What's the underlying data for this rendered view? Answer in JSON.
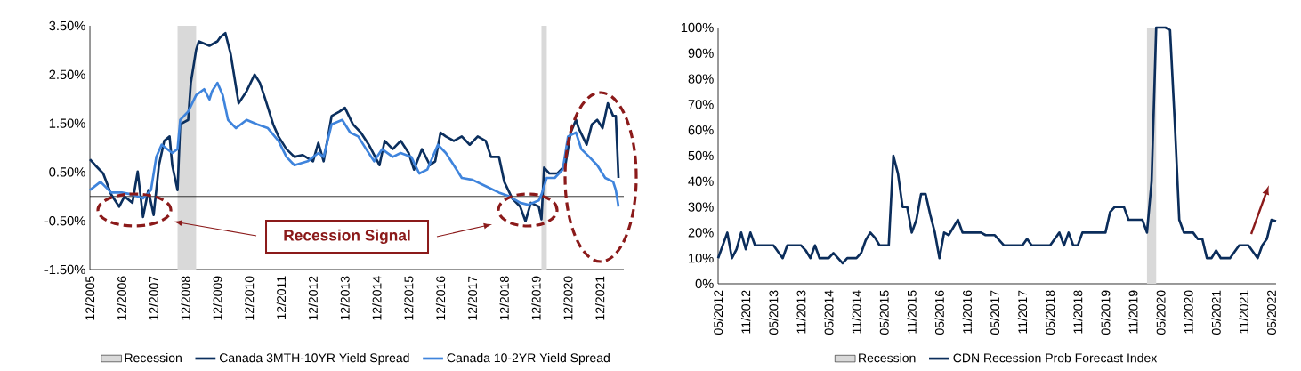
{
  "chart_data": [
    {
      "type": "line",
      "legend": "bottom",
      "xlim": [
        "2005-12",
        "2022-09"
      ],
      "ylim": [
        -1.5,
        3.5
      ],
      "xticks": [
        {
          "value": "2005-12",
          "label": "12/2005"
        },
        {
          "value": "2006-12",
          "label": "12/2006"
        },
        {
          "value": "2007-12",
          "label": "12/2007"
        },
        {
          "value": "2008-12",
          "label": "12/2008"
        },
        {
          "value": "2009-12",
          "label": "12/2009"
        },
        {
          "value": "2010-12",
          "label": "12/2010"
        },
        {
          "value": "2011-12",
          "label": "12/2011"
        },
        {
          "value": "2012-12",
          "label": "12/2012"
        },
        {
          "value": "2013-12",
          "label": "12/2013"
        },
        {
          "value": "2014-12",
          "label": "12/2014"
        },
        {
          "value": "2015-12",
          "label": "12/2015"
        },
        {
          "value": "2016-12",
          "label": "12/2016"
        },
        {
          "value": "2017-12",
          "label": "12/2017"
        },
        {
          "value": "2018-12",
          "label": "12/2018"
        },
        {
          "value": "2019-12",
          "label": "12/2019"
        },
        {
          "value": "2020-12",
          "label": "12/2020"
        },
        {
          "value": "2021-12",
          "label": "12/2021"
        }
      ],
      "yticks": [
        {
          "value": -1.5,
          "label": "-1.50%"
        },
        {
          "value": -0.5,
          "label": "-0.50%"
        },
        {
          "value": 0.5,
          "label": "0.50%"
        },
        {
          "value": 1.5,
          "label": "1.50%"
        },
        {
          "value": 2.5,
          "label": "2.50%"
        },
        {
          "value": 3.5,
          "label": "3.50%"
        }
      ],
      "bands": [
        {
          "axis": "x",
          "from": "2008-09",
          "to": "2009-04",
          "label": "Recession",
          "color": "#d9d9d9"
        },
        {
          "axis": "x",
          "from": "2020-02",
          "to": "2020-04",
          "color": "#d9d9d9"
        }
      ],
      "ref_lines": [
        {
          "axis": "y",
          "value": 0,
          "color": "#000000"
        }
      ],
      "annotations": [
        "Recession Signal"
      ],
      "series": [
        {
          "name": "Canada 3MTH-10YR Yield Spread",
          "color": "#0b2f5e",
          "x": [
            "2005-12",
            "2006-02",
            "2006-05",
            "2006-08",
            "2006-11",
            "2007-01",
            "2007-04",
            "2007-06",
            "2007-08",
            "2007-10",
            "2007-12",
            "2008-02",
            "2008-04",
            "2008-06",
            "2008-07",
            "2008-09",
            "2008-10",
            "2009-01",
            "2009-02",
            "2009-04",
            "2009-05",
            "2009-09",
            "2009-12",
            "2010-01",
            "2010-03",
            "2010-05",
            "2010-08",
            "2010-11",
            "2011-02",
            "2011-04",
            "2011-06",
            "2011-09",
            "2011-11",
            "2012-02",
            "2012-05",
            "2012-08",
            "2012-12",
            "2013-02",
            "2013-04",
            "2013-07",
            "2013-10",
            "2013-12",
            "2014-03",
            "2014-06",
            "2014-09",
            "2015-01",
            "2015-03",
            "2015-06",
            "2015-09",
            "2015-12",
            "2016-02",
            "2016-05",
            "2016-08",
            "2016-10",
            "2016-12",
            "2017-02",
            "2017-05",
            "2017-08",
            "2017-11",
            "2018-02",
            "2018-05",
            "2018-07",
            "2018-10",
            "2018-12",
            "2019-03",
            "2019-06",
            "2019-08",
            "2019-10",
            "2020-01",
            "2020-02",
            "2020-03",
            "2020-05",
            "2020-08",
            "2020-11",
            "2021-01",
            "2021-03",
            "2021-04",
            "2021-07",
            "2021-09",
            "2021-11",
            "2022-01",
            "2022-03",
            "2022-05",
            "2022-06",
            "2022-07"
          ],
          "values": [
            0.76,
            0.64,
            0.47,
            0.04,
            -0.21,
            0,
            -0.13,
            0.51,
            -0.42,
            0.13,
            -0.38,
            0.64,
            1.14,
            1.23,
            0.64,
            0.13,
            1.48,
            1.57,
            2.33,
            3.01,
            3.18,
            3.09,
            3.18,
            3.26,
            3.35,
            2.92,
            1.91,
            2.16,
            2.5,
            2.33,
            2.0,
            1.48,
            1.23,
            0.97,
            0.81,
            0.85,
            0.72,
            1.1,
            0.72,
            1.65,
            1.74,
            1.82,
            1.48,
            1.31,
            1.06,
            0.64,
            1.14,
            0.97,
            1.14,
            0.89,
            0.55,
            0.97,
            0.64,
            0.72,
            1.31,
            1.23,
            1.14,
            1.23,
            1.06,
            1.23,
            1.14,
            0.81,
            0.81,
            0.3,
            -0.04,
            -0.21,
            -0.51,
            -0.13,
            -0.21,
            -0.47,
            0.59,
            0.47,
            0.47,
            0.64,
            1.31,
            1.57,
            1.4,
            1.06,
            1.48,
            1.57,
            1.4,
            1.91,
            1.65,
            1.65,
            0.38
          ]
        },
        {
          "name": "Canada 10-2YR Yield Spread",
          "color": "#3f84dc",
          "x": [
            "2005-12",
            "2006-04",
            "2006-08",
            "2006-12",
            "2007-04",
            "2007-08",
            "2007-11",
            "2008-01",
            "2008-03",
            "2008-07",
            "2008-09",
            "2008-10",
            "2009-01",
            "2009-04",
            "2009-07",
            "2009-09",
            "2009-10",
            "2009-12",
            "2010-02",
            "2010-04",
            "2010-07",
            "2010-11",
            "2011-03",
            "2011-07",
            "2011-11",
            "2012-02",
            "2012-05",
            "2012-10",
            "2013-02",
            "2013-04",
            "2013-07",
            "2013-11",
            "2014-02",
            "2014-05",
            "2014-08",
            "2014-11",
            "2015-02",
            "2015-06",
            "2015-09",
            "2016-01",
            "2016-04",
            "2016-07",
            "2016-11",
            "2017-02",
            "2017-05",
            "2017-08",
            "2017-12",
            "2018-05",
            "2018-10",
            "2019-02",
            "2019-06",
            "2019-09",
            "2020-01",
            "2020-02",
            "2020-04",
            "2020-07",
            "2020-10",
            "2020-12",
            "2021-03",
            "2021-05",
            "2021-08",
            "2021-11",
            "2022-02",
            "2022-05",
            "2022-06",
            "2022-07"
          ],
          "values": [
            0.13,
            0.3,
            0.08,
            0.08,
            0.04,
            -0.04,
            0.13,
            0.81,
            1.06,
            0.89,
            0.97,
            1.57,
            1.74,
            2.08,
            2.2,
            1.99,
            2.16,
            2.33,
            2.08,
            1.57,
            1.4,
            1.57,
            1.48,
            1.4,
            1.14,
            0.81,
            0.64,
            0.72,
            0.89,
            0.81,
            1.48,
            1.57,
            1.31,
            1.23,
            0.97,
            0.72,
            0.97,
            0.81,
            0.89,
            0.81,
            0.47,
            0.55,
            1.06,
            0.89,
            0.64,
            0.38,
            0.34,
            0.21,
            0.08,
            0,
            -0.13,
            -0.17,
            -0.08,
            0.04,
            0.38,
            0.38,
            0.55,
            1.23,
            1.31,
            0.97,
            0.81,
            0.64,
            0.38,
            0.3,
            0.13,
            -0.21
          ]
        }
      ]
    },
    {
      "type": "line",
      "legend": "bottom",
      "xlim": [
        "2012-05",
        "2022-06"
      ],
      "ylim": [
        0,
        100
      ],
      "xticks": [
        {
          "value": "2012-05",
          "label": "05/2012"
        },
        {
          "value": "2012-11",
          "label": "11/2012"
        },
        {
          "value": "2013-05",
          "label": "05/2013"
        },
        {
          "value": "2013-11",
          "label": "11/2013"
        },
        {
          "value": "2014-05",
          "label": "05/2014"
        },
        {
          "value": "2014-11",
          "label": "11/2014"
        },
        {
          "value": "2015-05",
          "label": "05/2015"
        },
        {
          "value": "2015-11",
          "label": "11/2015"
        },
        {
          "value": "2016-05",
          "label": "05/2016"
        },
        {
          "value": "2016-11",
          "label": "11/2016"
        },
        {
          "value": "2017-05",
          "label": "05/2017"
        },
        {
          "value": "2017-11",
          "label": "11/2017"
        },
        {
          "value": "2018-05",
          "label": "05/2018"
        },
        {
          "value": "2018-11",
          "label": "11/2018"
        },
        {
          "value": "2019-05",
          "label": "05/2019"
        },
        {
          "value": "2019-11",
          "label": "11/2019"
        },
        {
          "value": "2020-05",
          "label": "05/2020"
        },
        {
          "value": "2020-11",
          "label": "11/2020"
        },
        {
          "value": "2021-05",
          "label": "05/2021"
        },
        {
          "value": "2021-11",
          "label": "11/2021"
        },
        {
          "value": "2022-05",
          "label": "05/2022"
        }
      ],
      "yticks": [
        {
          "value": 0,
          "label": "0%"
        },
        {
          "value": 10,
          "label": "10%"
        },
        {
          "value": 20,
          "label": "20%"
        },
        {
          "value": 30,
          "label": "30%"
        },
        {
          "value": 40,
          "label": "40%"
        },
        {
          "value": 50,
          "label": "50%"
        },
        {
          "value": 60,
          "label": "60%"
        },
        {
          "value": 70,
          "label": "70%"
        },
        {
          "value": 80,
          "label": "80%"
        },
        {
          "value": 90,
          "label": "90%"
        },
        {
          "value": 100,
          "label": "100%"
        }
      ],
      "bands": [
        {
          "axis": "x",
          "from": "2020-02",
          "to": "2020-04",
          "label": "Recession",
          "color": "#d9d9d9"
        }
      ],
      "series": [
        {
          "name": "CDN Recession Prob Forecast Index",
          "color": "#0b2d5b",
          "x": [
            "2012-05",
            "2012-07",
            "2012-08",
            "2012-09",
            "2012-10",
            "2012-11",
            "2012-12",
            "2013-01",
            "2013-05",
            "2013-07",
            "2013-08",
            "2013-11",
            "2013-12",
            "2014-01",
            "2014-02",
            "2014-03",
            "2014-05",
            "2014-06",
            "2014-08",
            "2014-09",
            "2014-11",
            "2014-12",
            "2015-01",
            "2015-02",
            "2015-03",
            "2015-04",
            "2015-06",
            "2015-07",
            "2015-08",
            "2015-09",
            "2015-10",
            "2015-11",
            "2015-12",
            "2016-01",
            "2016-02",
            "2016-03",
            "2016-04",
            "2016-05",
            "2016-06",
            "2016-07",
            "2016-09",
            "2016-10",
            "2017-02",
            "2017-03",
            "2017-05",
            "2017-07",
            "2017-11",
            "2017-12",
            "2018-01",
            "2018-05",
            "2018-07",
            "2018-08",
            "2018-09",
            "2018-10",
            "2018-11",
            "2018-12",
            "2019-05",
            "2019-06",
            "2019-07",
            "2019-09",
            "2019-10",
            "2020-01",
            "2020-02",
            "2020-03",
            "2020-04",
            "2020-06",
            "2020-07",
            "2020-08",
            "2020-09",
            "2020-10",
            "2020-12",
            "2021-01",
            "2021-02",
            "2021-03",
            "2021-04",
            "2021-05",
            "2021-06",
            "2021-08",
            "2021-10",
            "2021-12",
            "2022-02",
            "2022-03",
            "2022-04",
            "2022-05",
            "2022-06"
          ],
          "values": [
            10,
            20,
            10,
            13.5,
            20,
            13.5,
            20,
            15,
            15,
            10,
            15,
            15,
            13,
            10,
            15,
            10,
            10,
            12,
            8,
            10,
            10,
            12,
            17,
            20,
            18,
            15,
            15,
            50,
            43,
            30,
            30,
            20,
            25,
            35,
            35,
            27,
            20,
            10,
            20,
            19,
            25,
            20,
            20,
            19,
            19,
            15,
            15,
            17.5,
            15,
            15,
            20,
            15,
            20,
            15,
            15,
            20,
            20,
            28,
            30,
            30,
            25,
            25,
            20,
            40,
            100,
            100,
            99,
            64,
            25,
            20,
            20,
            17.5,
            17.5,
            10,
            10,
            13,
            10,
            10,
            15,
            15,
            10,
            15,
            17.5,
            25,
            24.5
          ]
        }
      ]
    }
  ]
}
